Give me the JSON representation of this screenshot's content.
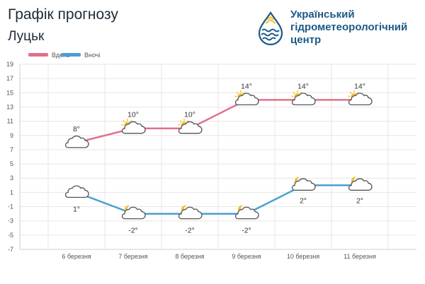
{
  "header": {
    "title": "Графік прогнозу",
    "city": "Луцьк"
  },
  "organization": {
    "name_line1": "Український",
    "name_line2": "гідрометеорологічний",
    "name_line3": "центр"
  },
  "colors": {
    "day": "#e0708a",
    "night": "#4a9fd1",
    "grid": "#e6e6e6",
    "org_blue": "#1c5a87",
    "sun": "#f3c230",
    "cloud_fill": "#ffffff",
    "cloud_stroke": "#555555"
  },
  "chart_data": {
    "type": "line",
    "categories": [
      "6 березня",
      "7 березня",
      "8 березня",
      "9 березня",
      "10 березня",
      "11 березня"
    ],
    "ylim": [
      -7,
      19
    ],
    "yticks": [
      19,
      17,
      15,
      13,
      11,
      9,
      7,
      5,
      3,
      1,
      -1,
      -3,
      -5,
      -7
    ],
    "grid": true,
    "legend_position": "top-left",
    "series": [
      {
        "name": "Вдень",
        "values": [
          8,
          10,
          10,
          14,
          14,
          14
        ],
        "labels": [
          "8°",
          "10°",
          "10°",
          "14°",
          "14°",
          "14°"
        ],
        "icons": [
          "cloudy-icon",
          "partly-sunny-icon",
          "partly-sunny-icon",
          "partly-sunny-icon",
          "partly-sunny-icon",
          "partly-sunny-icon"
        ]
      },
      {
        "name": "Вночі",
        "values": [
          1,
          -2,
          -2,
          -2,
          2,
          2
        ],
        "labels": [
          "1°",
          "-2°",
          "-2°",
          "-2°",
          "2°",
          "2°"
        ],
        "icons": [
          "cloudy-icon",
          "partly-cloudy-night-icon",
          "partly-cloudy-night-icon",
          "partly-cloudy-night-icon",
          "partly-cloudy-night-icon",
          "partly-cloudy-night-icon"
        ]
      }
    ]
  }
}
